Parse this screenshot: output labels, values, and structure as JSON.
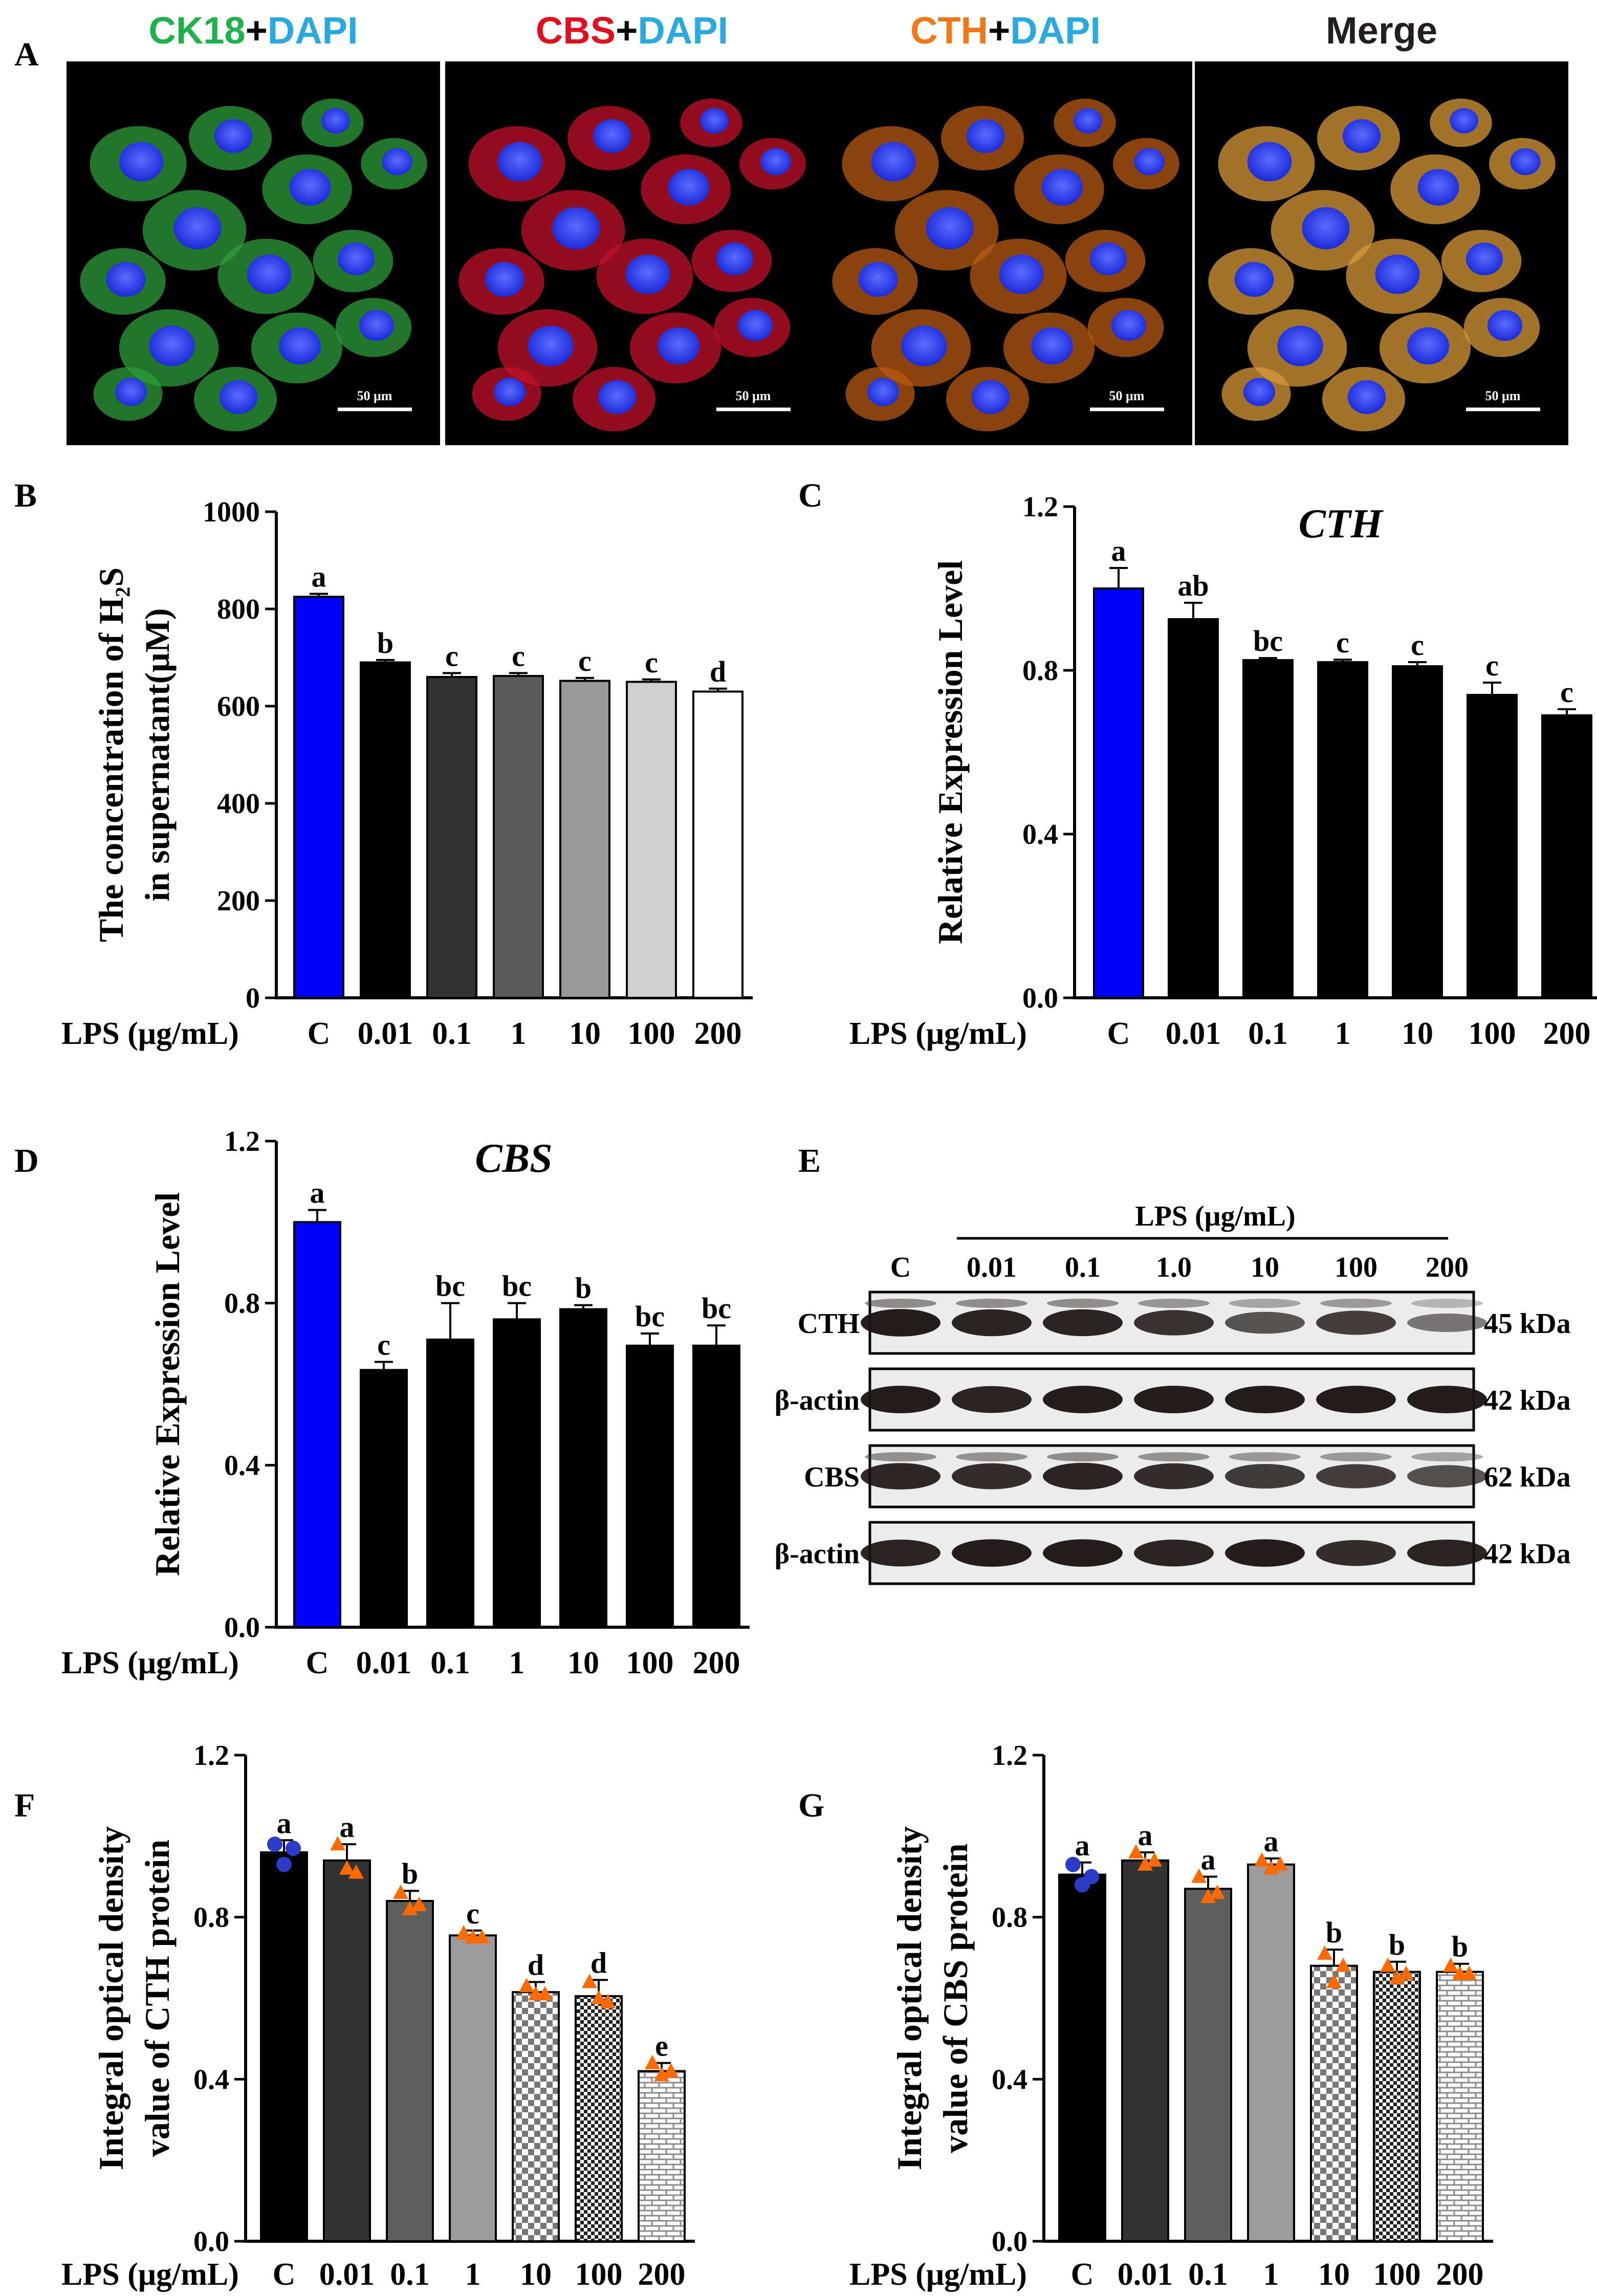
{
  "panel_labels": {
    "A": "A",
    "B": "B",
    "C": "C",
    "D": "D",
    "E": "E",
    "F": "F",
    "G": "G"
  },
  "microscopy": {
    "panels": [
      {
        "title_parts": [
          {
            "text": "CK18",
            "color": "#1fb24a"
          },
          {
            "text": "+",
            "color": "#000000"
          },
          {
            "text": "DAPI",
            "color": "#29a9e0"
          }
        ],
        "scale_bar": "50 μm",
        "stain_color": "#2e9e3a"
      },
      {
        "title_parts": [
          {
            "text": "CBS",
            "color": "#e0101e"
          },
          {
            "text": "+",
            "color": "#000000"
          },
          {
            "text": "DAPI",
            "color": "#29a9e0"
          }
        ],
        "scale_bar": "50 μm",
        "stain_color": "#c2122a"
      },
      {
        "title_parts": [
          {
            "text": "CTH",
            "color": "#f07818"
          },
          {
            "text": "+",
            "color": "#000000"
          },
          {
            "text": "DAPI",
            "color": "#29a9e0"
          }
        ],
        "scale_bar": "50 μm",
        "stain_color": "#b85a12"
      },
      {
        "title_parts": [
          {
            "text": "Merge",
            "color": "#231f20"
          }
        ],
        "scale_bar": "50 μm",
        "stain_color": "#d89a3a"
      }
    ]
  },
  "x_axis_prefix": "LPS (μg/mL)",
  "western": {
    "header": "LPS (μg/mL)",
    "lanes": [
      "C",
      "0.01",
      "0.1",
      "1.0",
      "10",
      "100",
      "200"
    ],
    "rows": [
      {
        "label": "CTH",
        "size": "45 kDa"
      },
      {
        "label": "β-actin",
        "size": "42 kDa"
      },
      {
        "label": "CBS",
        "size": "62 kDa"
      },
      {
        "label": "β-actin",
        "size": "42 kDa"
      }
    ]
  },
  "chart_data": [
    {
      "id": "B",
      "type": "bar",
      "title": "",
      "categories": [
        "C",
        "0.01",
        "0.1",
        "1",
        "10",
        "100",
        "200"
      ],
      "values": [
        825,
        690,
        660,
        662,
        652,
        650,
        630
      ],
      "errors": [
        6,
        5,
        8,
        6,
        6,
        5,
        6
      ],
      "letters": [
        "a",
        "b",
        "c",
        "c",
        "c",
        "c",
        "d"
      ],
      "ylabel_lines": [
        "The concentration of H₂S",
        "in supernatant(μM)"
      ],
      "ylim": [
        0,
        1000
      ],
      "yticks": [
        0,
        200,
        400,
        600,
        800,
        1000
      ],
      "colors": [
        "#0000ff",
        "#000000",
        "#333333",
        "#5a5a5a",
        "#9a9a9a",
        "#d0d0d0",
        "#ffffff"
      ]
    },
    {
      "id": "C",
      "type": "bar",
      "title": "CTH",
      "categories": [
        "C",
        "0.01",
        "0.1",
        "1",
        "10",
        "100",
        "200"
      ],
      "values": [
        1.0,
        0.925,
        0.825,
        0.82,
        0.81,
        0.74,
        0.69
      ],
      "errors": [
        0.05,
        0.04,
        0.005,
        0.006,
        0.01,
        0.03,
        0.015
      ],
      "letters": [
        "a",
        "ab",
        "bc",
        "c",
        "c",
        "c",
        "c"
      ],
      "ylabel_lines": [
        "Relative Expression Level"
      ],
      "ylim": [
        0,
        1.2
      ],
      "yticks": [
        "0.0",
        "0.4",
        "0.8",
        "1.2"
      ],
      "colors": [
        "#0000ff",
        "#000000",
        "#000000",
        "#000000",
        "#000000",
        "#000000",
        "#000000"
      ]
    },
    {
      "id": "D",
      "type": "bar",
      "title": "CBS",
      "categories": [
        "C",
        "0.01",
        "0.1",
        "1",
        "10",
        "100",
        "200"
      ],
      "values": [
        1.0,
        0.635,
        0.71,
        0.76,
        0.785,
        0.695,
        0.695
      ],
      "errors": [
        0.03,
        0.02,
        0.09,
        0.04,
        0.01,
        0.03,
        0.05
      ],
      "letters": [
        "a",
        "c",
        "bc",
        "bc",
        "b",
        "bc",
        "bc"
      ],
      "ylabel_lines": [
        "Relative Expression Level"
      ],
      "ylim": [
        0,
        1.2
      ],
      "yticks": [
        "0.0",
        "0.4",
        "0.8",
        "1.2"
      ],
      "colors": [
        "#0000ff",
        "#000000",
        "#000000",
        "#000000",
        "#000000",
        "#000000",
        "#000000"
      ]
    },
    {
      "id": "F",
      "type": "bar",
      "title": "",
      "categories": [
        "C",
        "0.01",
        "0.1",
        "1",
        "10",
        "100",
        "200"
      ],
      "values": [
        0.96,
        0.94,
        0.84,
        0.755,
        0.615,
        0.605,
        0.42
      ],
      "errors": [
        0.03,
        0.04,
        0.025,
        0.012,
        0.025,
        0.04,
        0.02
      ],
      "letters": [
        "a",
        "a",
        "b",
        "c",
        "d",
        "d",
        "e"
      ],
      "points": [
        [
          0.98,
          0.93,
          0.97
        ],
        [
          0.98,
          0.92,
          0.91
        ],
        [
          0.86,
          0.82,
          0.83
        ],
        [
          0.76,
          0.75,
          0.75
        ],
        [
          0.63,
          0.61,
          0.61
        ],
        [
          0.64,
          0.6,
          0.59
        ],
        [
          0.44,
          0.41,
          0.42
        ]
      ],
      "point_colors": [
        "#2b3cc8",
        "#ff6a00",
        "#ff6a00",
        "#ff6a00",
        "#ff6a00",
        "#ff6a00",
        "#ff6a00"
      ],
      "ylabel_lines": [
        "Integral optical density",
        "value of CTH protein"
      ],
      "ylim": [
        0,
        1.2
      ],
      "yticks": [
        "0.0",
        "0.4",
        "0.8",
        "1.2"
      ],
      "fills": [
        "solid:#000000",
        "solid:#333333",
        "solid:#5f5f5f",
        "solid:#9b9b9b",
        "checker",
        "checkerDense",
        "brick"
      ]
    },
    {
      "id": "G",
      "type": "bar",
      "title": "",
      "categories": [
        "C",
        "0.01",
        "0.1",
        "1",
        "10",
        "100",
        "200"
      ],
      "values": [
        0.905,
        0.94,
        0.87,
        0.93,
        0.68,
        0.665,
        0.665
      ],
      "errors": [
        0.03,
        0.02,
        0.03,
        0.015,
        0.04,
        0.025,
        0.02
      ],
      "letters": [
        "a",
        "a",
        "a",
        "a",
        "b",
        "b",
        "b"
      ],
      "points": [
        [
          0.93,
          0.88,
          0.9
        ],
        [
          0.96,
          0.93,
          0.94
        ],
        [
          0.9,
          0.85,
          0.86
        ],
        [
          0.94,
          0.92,
          0.93
        ],
        [
          0.71,
          0.64,
          0.68
        ],
        [
          0.68,
          0.65,
          0.66
        ],
        [
          0.68,
          0.66,
          0.66
        ]
      ],
      "point_colors": [
        "#2b3cc8",
        "#ff6a00",
        "#ff6a00",
        "#ff6a00",
        "#ff6a00",
        "#ff6a00",
        "#ff6a00"
      ],
      "ylabel_lines": [
        "Integral optical density",
        "value of CBS protein"
      ],
      "ylim": [
        0,
        1.2
      ],
      "yticks": [
        "0.0",
        "0.4",
        "0.8",
        "1.2"
      ],
      "fills": [
        "solid:#000000",
        "solid:#333333",
        "solid:#5f5f5f",
        "solid:#9b9b9b",
        "checker",
        "checkerDense",
        "brick"
      ]
    }
  ]
}
